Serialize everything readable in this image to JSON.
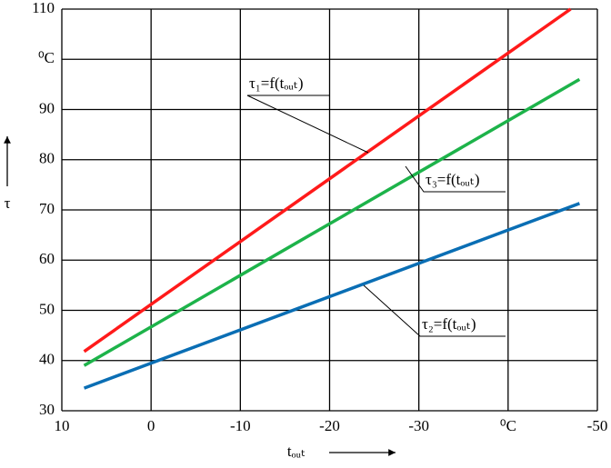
{
  "chart_data": {
    "type": "line",
    "x_label": "tₒᵤₜ",
    "y_label": "τ",
    "xlim": [
      10,
      -50
    ],
    "ylim": [
      30,
      110
    ],
    "xticks": [
      10,
      0,
      -10,
      -20,
      -30,
      {
        "value": -40,
        "label": "⁰C"
      },
      -50
    ],
    "yticks": [
      30,
      40,
      50,
      60,
      70,
      80,
      90,
      {
        "value": 100,
        "label": "⁰C"
      },
      110
    ],
    "grid": true,
    "series": [
      {
        "name": "τ₁=f(tₒᵤₜ)",
        "color": "#ff1a1a",
        "x": [
          7.5,
          -47
        ],
        "values": [
          41.8,
          110
        ]
      },
      {
        "name": "τ₃=f(tₒᵤₜ)",
        "color": "#1db34a",
        "x": [
          7.5,
          -48
        ],
        "values": [
          39,
          96
        ]
      },
      {
        "name": "τ₂=f(tₒᵤₜ)",
        "color": "#0a6eb4",
        "x": [
          7.5,
          -48
        ],
        "values": [
          34.5,
          71.3
        ]
      }
    ]
  }
}
